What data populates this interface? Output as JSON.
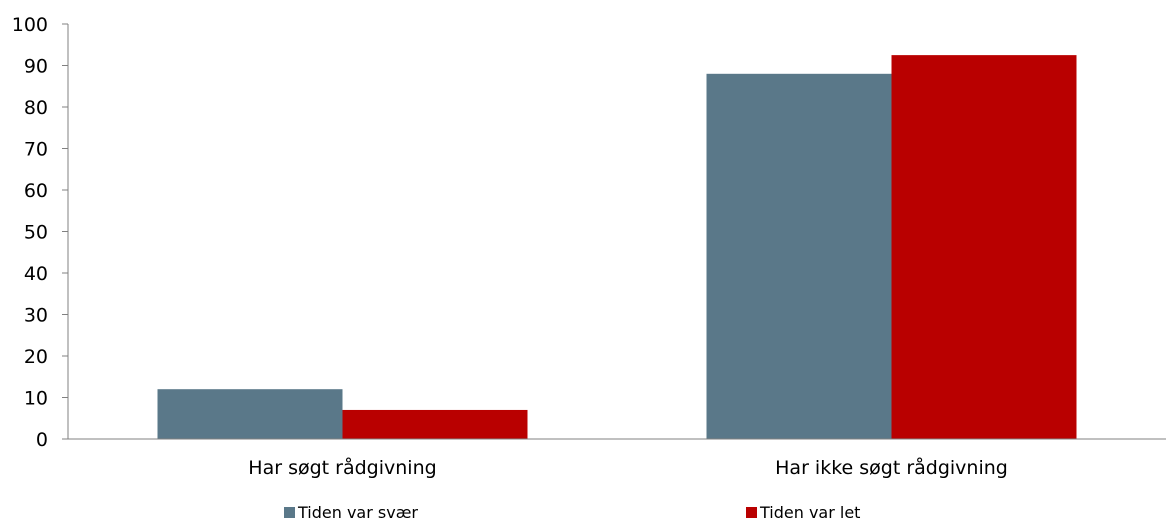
{
  "chart_data": {
    "type": "bar",
    "categories": [
      "Har søgt rådgivning",
      "Har ikke søgt rådgivning"
    ],
    "series": [
      {
        "name": "Tiden var svær",
        "color": "#5a7889",
        "values": [
          12,
          88
        ]
      },
      {
        "name": "Tiden var let",
        "color": "#b90000",
        "values": [
          7,
          92.5
        ]
      }
    ],
    "ylim": [
      0,
      100
    ],
    "yticks": [
      0,
      10,
      20,
      30,
      40,
      50,
      60,
      70,
      80,
      90,
      100
    ],
    "grid": false,
    "legend_position": "bottom"
  }
}
